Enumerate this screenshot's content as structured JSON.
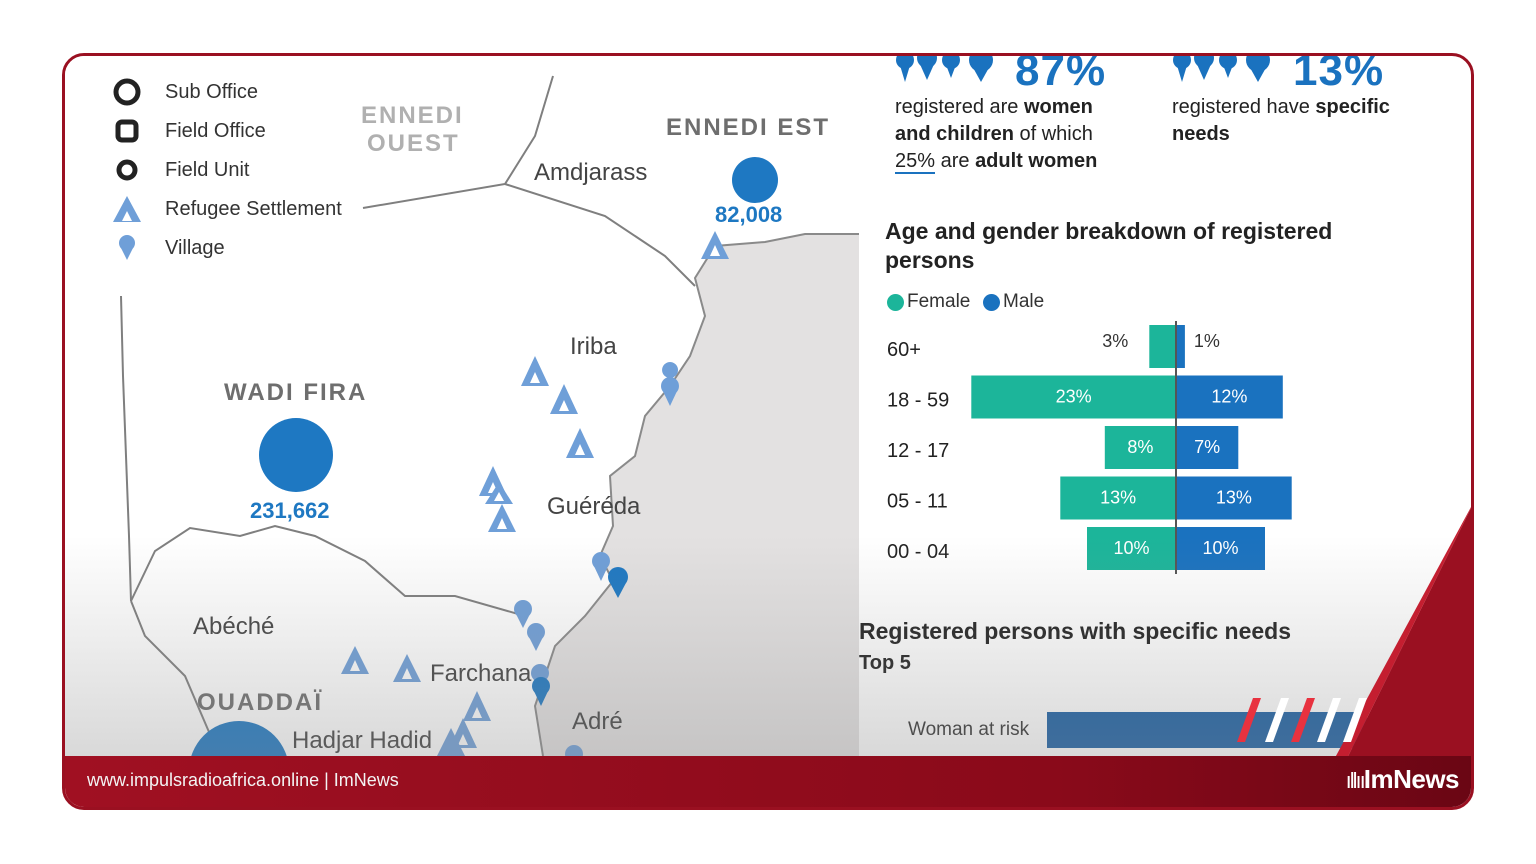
{
  "legend": [
    {
      "icon": "sub-office-icon",
      "label": "Sub Office"
    },
    {
      "icon": "field-office-icon",
      "label": "Field Office"
    },
    {
      "icon": "field-unit-icon",
      "label": "Field Unit"
    },
    {
      "icon": "refugee-settlement-icon",
      "label": "Refugee Settlement"
    },
    {
      "icon": "village-icon",
      "label": "Village"
    }
  ],
  "regions": {
    "ennedi_ouest_1": "ENNEDI",
    "ennedi_ouest_2": "OUEST",
    "ennedi_est": "ENNEDI EST",
    "wadi_fira": "WADI FIRA",
    "ouaddai": "OUADDAÏ"
  },
  "places": {
    "amdjarass": "Amdjarass",
    "iriba": "Iriba",
    "gereda": "Guéréda",
    "abeche": "Abéché",
    "farchana": "Farchana",
    "hadjar_hadid": "Hadjar Hadid",
    "adre": "Adré"
  },
  "populations": {
    "ennedi_est": "82,008",
    "wadi_fira": "231,662"
  },
  "stats": {
    "women_children_pct": "87%",
    "women_children_text_1": "registered are ",
    "women_children_bold_1": "women",
    "women_children_bold_2": "and children",
    "women_children_text_2": " of which",
    "adult_women_pct": "25%",
    "women_children_text_3": " are ",
    "women_children_bold_3": "adult women",
    "specific_needs_pct": "13%",
    "specific_needs_text": "registered have ",
    "specific_needs_bold_1": "specific",
    "specific_needs_bold_2": "needs"
  },
  "pyramid": {
    "heading_line1": "Age and gender breakdown of registered",
    "heading_line2": "persons"
  },
  "needs": {
    "heading": "Registered persons with specific needs",
    "subheading": "Top 5",
    "items": [
      {
        "label": "Woman at risk"
      }
    ]
  },
  "colors": {
    "female": "#1cb59a",
    "male": "#1a72bf",
    "map_blue": "#1e78c2",
    "footer": "#9a1021"
  },
  "footer": {
    "url": "www.impulsradioafrica.online | ImNews",
    "brand": "ImNews"
  },
  "chart_data": {
    "type": "bar",
    "orientation": "horizontal-population-pyramid",
    "categories": [
      "60+",
      "18 - 59",
      "12 - 17",
      "05 - 11",
      "00 - 04"
    ],
    "series": [
      {
        "name": "Female",
        "values": [
          3,
          23,
          8,
          13,
          10
        ]
      },
      {
        "name": "Male",
        "values": [
          1,
          12,
          7,
          13,
          10
        ]
      }
    ],
    "value_labels": {
      "Female": [
        "3%",
        "23%",
        "8%",
        "13%",
        "10%"
      ],
      "Male": [
        "1%",
        "12%",
        "7%",
        "13%",
        "10%"
      ]
    },
    "legend_position": "top-left",
    "grid": false
  }
}
